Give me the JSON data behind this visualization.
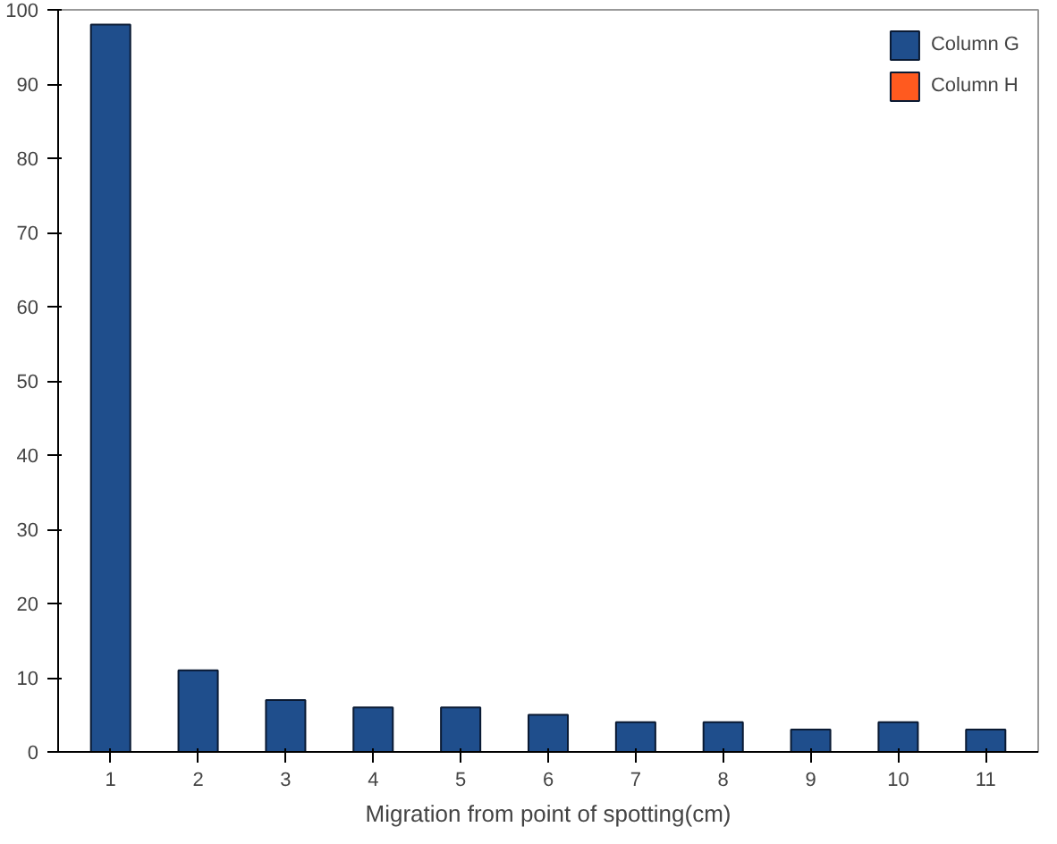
{
  "chart_data": {
    "type": "bar",
    "xlabel": "Migration from point of spotting(cm)",
    "categories": [
      "1",
      "2",
      "3",
      "4",
      "5",
      "6",
      "7",
      "8",
      "9",
      "10",
      "11"
    ],
    "series": [
      {
        "name": "Column G",
        "color": "#1f4e8c",
        "values": [
          98,
          11,
          7,
          6,
          6,
          5,
          4,
          4,
          3,
          4,
          3
        ]
      },
      {
        "name": "Column H",
        "color": "#ff5a1f",
        "values": [
          null,
          null,
          null,
          null,
          null,
          null,
          null,
          null,
          null,
          null,
          null
        ]
      }
    ],
    "ylim": [
      0,
      100
    ],
    "yticks": [
      0,
      10,
      20,
      30,
      40,
      50,
      60,
      70,
      80,
      90,
      100
    ],
    "grid": false,
    "legend": "top right"
  }
}
